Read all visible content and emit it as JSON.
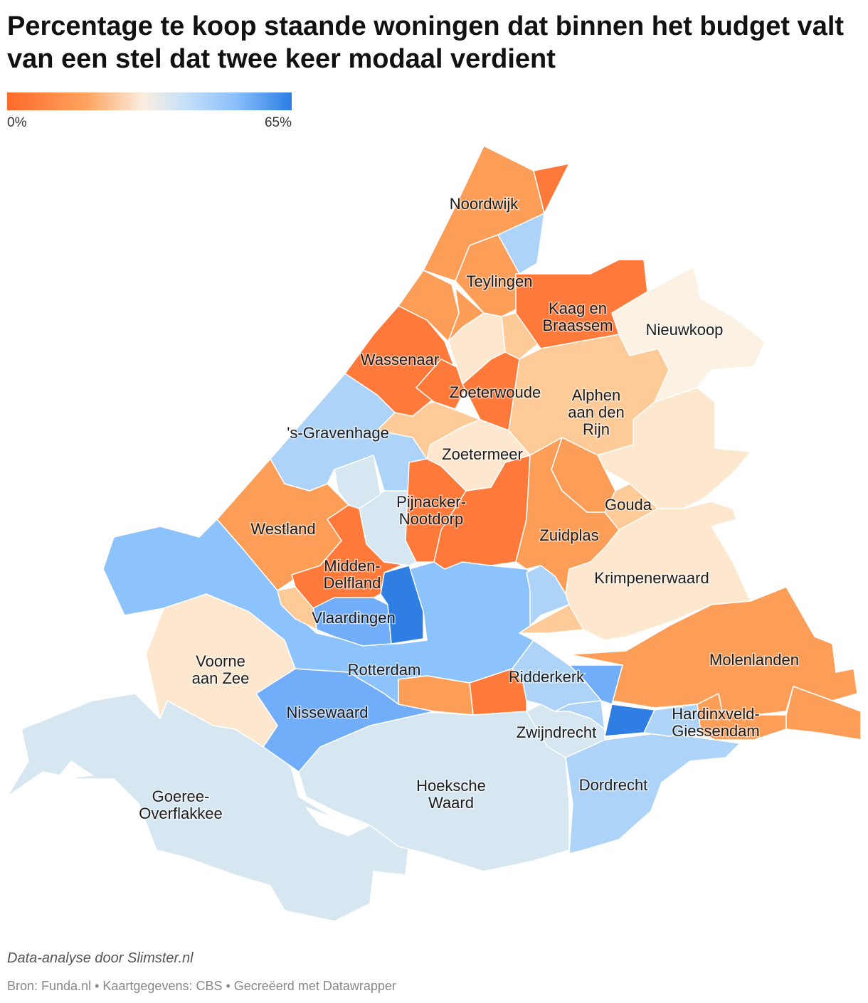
{
  "title": "Percentage te koop staande woningen dat binnen het budget valt van een stel dat twee keer modaal verdient",
  "legend": {
    "min_label": "0%",
    "max_label": "65%",
    "colors": [
      "#ff6a2a",
      "#fda45f",
      "#fbeee0",
      "#c8e1f8",
      "#8cc0fb",
      "#2a7de4"
    ]
  },
  "colors": {
    "dark_orange": "#ff7a3a",
    "orange": "#fd9e58",
    "light_orange": "#fdca98",
    "beige": "#fde7cf",
    "cream": "#fbf2e3",
    "pale_blue": "#d6e7f2",
    "light_blue": "#aed3f8",
    "blue": "#8cc3fc",
    "mid_blue": "#71adf9",
    "dark_blue": "#2f7ee3"
  },
  "map_labels": {
    "noordwijk": "Noordwijk",
    "teylingen": "Teylingen",
    "kaag": [
      "Kaag en",
      "Braassem"
    ],
    "nieuwkoop": "Nieuwkoop",
    "wassenaar": "Wassenaar",
    "zoeterwoude": "Zoeterwoude",
    "alphen": [
      "Alphen",
      "aan den",
      "Rijn"
    ],
    "gravenhage": "'s-Gravenhage",
    "zoetermeer": "Zoetermeer",
    "pijnacker": [
      "Pijnacker-",
      "Nootdorp"
    ],
    "gouda": "Gouda",
    "westland": "Westland",
    "zuidplas": "Zuidplas",
    "midden_delfland": [
      "Midden-",
      "Delfland"
    ],
    "krimpenerwaard": "Krimpenerwaard",
    "vlaardingen": "Vlaardingen",
    "voorne": [
      "Voorne",
      "aan Zee"
    ],
    "rotterdam": "Rotterdam",
    "ridderkerk": "Ridderkerk",
    "molenlanden": "Molenlanden",
    "nissewaard": "Nissewaard",
    "hardinxveld": [
      "Hardinxveld-",
      "Giessendam"
    ],
    "zwijndrecht": "Zwijndrecht",
    "goeree": [
      "Goeree-",
      "Overflakkee"
    ],
    "hoeksche": [
      "Hoeksche",
      "Waard"
    ],
    "dordrecht": "Dordrecht"
  },
  "notes": "Data-analyse door Slimster.nl",
  "source": "Bron: Funda.nl • Kaartgegevens: CBS • Gecreëerd met Datawrapper"
}
